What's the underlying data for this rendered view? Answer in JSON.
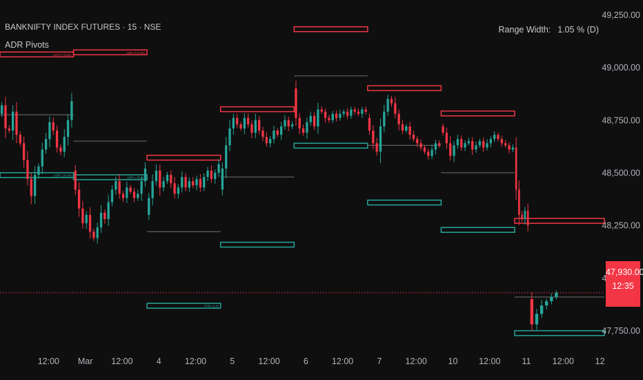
{
  "header": {
    "symbol_line": "BANKNIFTY INDEX FUTURES · 15 · NSE",
    "indicator_name": "ADR Pivots"
  },
  "range_width": {
    "label": "Range Width:",
    "value": "1.05 % (D)"
  },
  "last_price": {
    "price": "47,930.00",
    "countdown": "12:35"
  },
  "colors": {
    "background": "#0f0f0f",
    "up": "#26a69a",
    "down": "#f23645",
    "mid_line": "#5d5d5d",
    "text": "#c9c9c9",
    "axis_text": "#b2b5be"
  },
  "chart_data": {
    "type": "candlestick",
    "y_axis": {
      "ticks": [
        {
          "value": 49250,
          "label": "49,250.00"
        },
        {
          "value": 49000,
          "label": "49,000.00"
        },
        {
          "value": 48750,
          "label": "48,750.00"
        },
        {
          "value": 48500,
          "label": "48,500.00"
        },
        {
          "value": 48250,
          "label": "48,250.00"
        },
        {
          "value": 48000,
          "label": "48,000.00"
        },
        {
          "value": 47750,
          "label": "47,750.00"
        }
      ],
      "ylim": [
        47680,
        49320
      ]
    },
    "x_axis": {
      "ticks": [
        {
          "label": "12:00",
          "t": 0.5
        },
        {
          "label": "Mar",
          "t": 1.0
        },
        {
          "label": "12:00",
          "t": 1.5
        },
        {
          "label": "4",
          "t": 2.0
        },
        {
          "label": "12:00",
          "t": 2.5
        },
        {
          "label": "5",
          "t": 3.0
        },
        {
          "label": "12:00",
          "t": 3.5
        },
        {
          "label": "6",
          "t": 4.0
        },
        {
          "label": "12:00",
          "t": 4.5
        },
        {
          "label": "7",
          "t": 5.0
        },
        {
          "label": "12:00",
          "t": 5.5
        },
        {
          "label": "10",
          "t": 6.0
        },
        {
          "label": "12:00",
          "t": 6.5
        },
        {
          "label": "11",
          "t": 7.0
        },
        {
          "label": "12:00",
          "t": 7.5
        },
        {
          "label": "12",
          "t": 8.0
        }
      ],
      "tlim": [
        -0.16,
        8.06
      ]
    },
    "current_price": 47930,
    "sessions": [
      {
        "t0": -0.16,
        "t1": 0.84,
        "path": [
          48780,
          48820,
          48710,
          48700,
          48790,
          48680,
          48640,
          48560,
          48470,
          48390,
          48490,
          48530,
          48610,
          48660,
          48740,
          48700,
          48620,
          48600,
          48670,
          48750,
          48840
        ]
      },
      {
        "t0": 0.84,
        "t1": 1.84,
        "path": [
          48510,
          48420,
          48330,
          48260,
          48300,
          48220,
          48190,
          48240,
          48310,
          48280,
          48360,
          48420,
          48460,
          48400,
          48380,
          48430,
          48410,
          48380,
          48400,
          48460,
          48520
        ]
      },
      {
        "t0": 1.84,
        "t1": 2.84,
        "path": [
          48300,
          48380,
          48460,
          48510,
          48430,
          48460,
          48490,
          48450,
          48400,
          48430,
          48480,
          48430,
          48460,
          48440,
          48470,
          48430,
          48480,
          48510,
          48470,
          48500,
          48540
        ]
      },
      {
        "t0": 2.84,
        "t1": 3.84,
        "path": [
          48420,
          48520,
          48630,
          48710,
          48760,
          48730,
          48710,
          48760,
          48730,
          48690,
          48750,
          48700,
          48670,
          48640,
          48660,
          48700,
          48680,
          48720,
          48750,
          48720,
          48730
        ]
      },
      {
        "t0": 3.84,
        "t1": 4.84,
        "path": [
          48900,
          48760,
          48710,
          48690,
          48740,
          48770,
          48720,
          48800,
          48790,
          48760,
          48750,
          48780,
          48760,
          48780,
          48790,
          48770,
          48800,
          48790,
          48780,
          48800,
          48790
        ]
      },
      {
        "t0": 4.84,
        "t1": 5.84,
        "path": [
          48760,
          48700,
          48640,
          48600,
          48720,
          48790,
          48850,
          48830,
          48780,
          48730,
          48700,
          48720,
          48680,
          48660,
          48640,
          48620,
          48600,
          48580,
          48610,
          48640,
          48630
        ]
      },
      {
        "t0": 5.84,
        "t1": 6.84,
        "path": [
          48720,
          48690,
          48640,
          48580,
          48630,
          48660,
          48620,
          48640,
          48650,
          48610,
          48630,
          48650,
          48620,
          48640,
          48660,
          48680,
          48660,
          48640,
          48630,
          48610,
          48620
        ]
      },
      {
        "t0": 6.84,
        "t1": 7.04,
        "path": [
          48620,
          48420,
          48300,
          48280,
          48320,
          48250
        ]
      },
      {
        "t0": 7.04,
        "t1": 7.44,
        "path": [
          47900,
          47780,
          47830,
          47870,
          47890,
          47910,
          47930
        ]
      }
    ],
    "levels": [
      {
        "t0": -0.16,
        "t1": 0.84,
        "high": 49050,
        "low": 48500,
        "mid": 48775,
        "high_label": "ADR H (0.84)",
        "low_label": "ADR L (0.84)"
      },
      {
        "t0": 0.84,
        "t1": 1.84,
        "high": 49060,
        "low": 48490,
        "mid": 48650,
        "high_label": "ADR H (0.84)",
        "low_label": "ADR L (0.84)"
      },
      {
        "t0": 1.84,
        "t1": 2.84,
        "high": 48560,
        "low": 47880,
        "mid": 48220,
        "high_label": "",
        "low_label": "ATRL (1.0)"
      },
      {
        "t0": 2.84,
        "t1": 3.84,
        "high": 48790,
        "low": 48170,
        "mid": 48480,
        "high_label": "",
        "low_label": ""
      },
      {
        "t0": 3.84,
        "t1": 4.84,
        "high": 49170,
        "low": 48640,
        "mid": 48960,
        "high_label": "",
        "low_label": ""
      },
      {
        "t0": 4.84,
        "t1": 5.84,
        "high": 48890,
        "low": 48370,
        "mid": 48630,
        "high_label": "",
        "low_label": ""
      },
      {
        "t0": 5.84,
        "t1": 6.84,
        "high": 48770,
        "low": 48240,
        "mid": 48500,
        "high_label": "",
        "low_label": ""
      },
      {
        "t0": 6.84,
        "t1": 8.06,
        "high": 48260,
        "low": 47750,
        "mid": 47910,
        "high_label": "",
        "low_label": ""
      }
    ]
  }
}
